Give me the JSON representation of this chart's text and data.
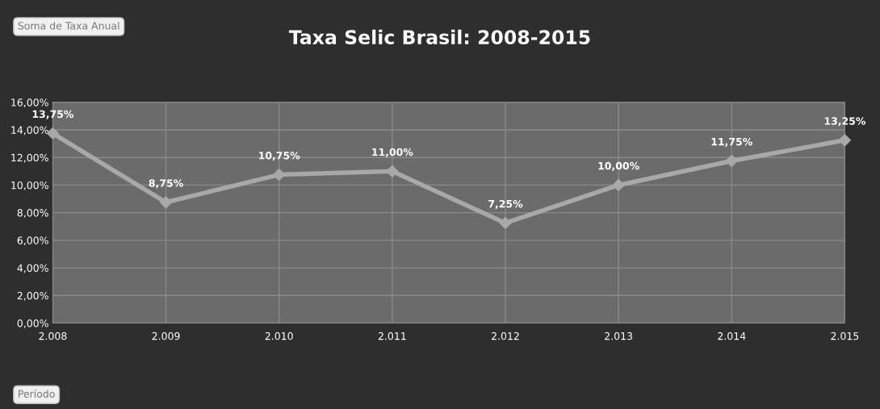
{
  "chart_data": {
    "type": "line",
    "title": "Taxa Selic Brasil: 2008-2015",
    "categories": [
      "2.008",
      "2.009",
      "2.010",
      "2.011",
      "2.012",
      "2.013",
      "2.014",
      "2.015"
    ],
    "series": [
      {
        "color": "#a8a8a8",
        "values": [
          13.75,
          8.75,
          10.75,
          11.0,
          7.25,
          10.0,
          11.75,
          13.25
        ],
        "value_labels": [
          "13,75%",
          "8,75%",
          "10,75%",
          "11,00%",
          "7,25%",
          "10,00%",
          "11,75%",
          "13,25%"
        ]
      }
    ],
    "ylim": [
      0,
      16
    ],
    "yticks": [
      {
        "value": 0,
        "label": "0,00%"
      },
      {
        "value": 2,
        "label": "2,00%"
      },
      {
        "value": 4,
        "label": "4,00%"
      },
      {
        "value": 6,
        "label": "6,00%"
      },
      {
        "value": 8,
        "label": "8,00%"
      },
      {
        "value": 10,
        "label": "10,00%"
      },
      {
        "value": 12,
        "label": "12,00%"
      },
      {
        "value": 14,
        "label": "14,00%"
      },
      {
        "value": 16,
        "label": "16,00%"
      }
    ],
    "grid": true,
    "marker": "diamond",
    "line_style": "solid",
    "annotations": [
      "Soma de Taxa Anual",
      "Período"
    ]
  }
}
